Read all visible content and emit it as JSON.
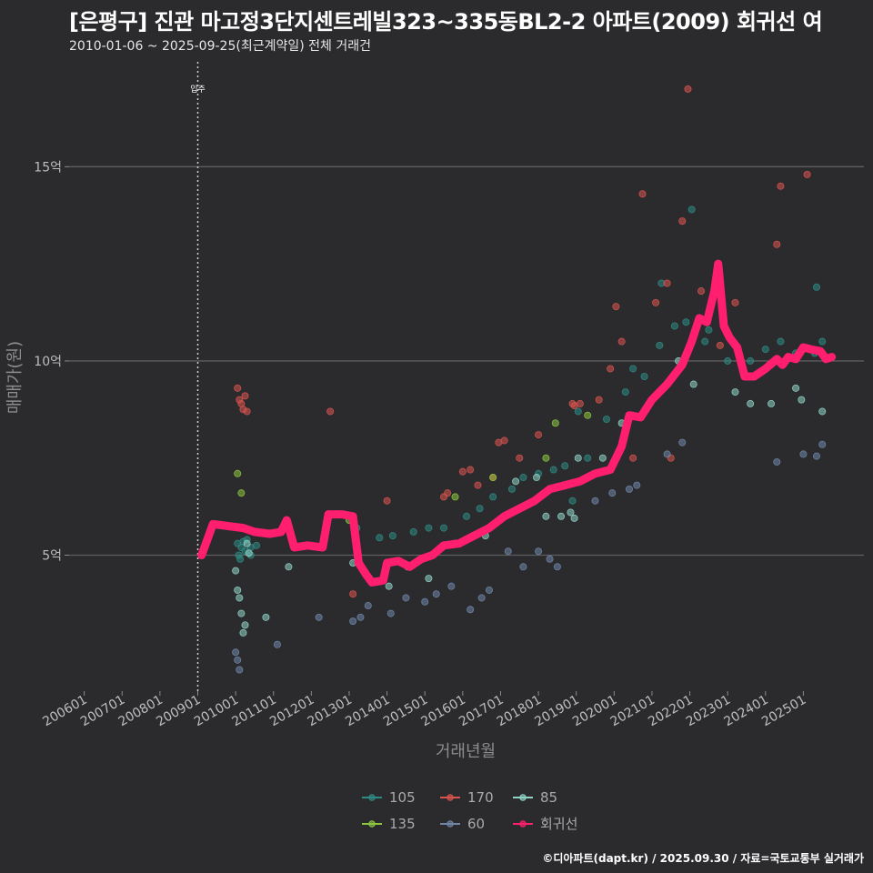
{
  "title": "[은평구] 진관 마고정3단지센트레빌323~335동BL2-2 아파트(2009) 회귀선 여",
  "subtitle": "2010-01-06 ~ 2025-09-25(최근계약일) 전체 거래건",
  "footer": "©디아파트(dapt.kr) / 2025.09.30 / 자료=국토교통부 실거래가",
  "chart_data": {
    "type": "scatter",
    "xlabel": "거래년월",
    "ylabel": "매매가(원)",
    "x_ticks": [
      "200601",
      "200701",
      "200801",
      "200901",
      "201001",
      "201101",
      "201201",
      "201301",
      "201401",
      "201501",
      "201601",
      "201701",
      "201801",
      "201901",
      "202001",
      "202101",
      "202201",
      "202301",
      "202401",
      "202501"
    ],
    "y_ticks": [
      {
        "value": 5,
        "label": "5억"
      },
      {
        "value": 10,
        "label": "10억"
      },
      {
        "value": 15,
        "label": "15억"
      }
    ],
    "xlim": [
      2005.6,
      2026.6
    ],
    "ylim": [
      1.5,
      17.7
    ],
    "grid": true,
    "annotation": {
      "label": "입주",
      "x": 2009.0
    },
    "legend": [
      {
        "name": "105",
        "color": "#2e8b84"
      },
      {
        "name": "170",
        "color": "#d9534f"
      },
      {
        "name": "85",
        "color": "#8fd3c7"
      },
      {
        "name": "135",
        "color": "#8cc63f"
      },
      {
        "name": "60",
        "color": "#6f86a8"
      },
      {
        "name": "회귀선",
        "color": "#ff1f6e"
      }
    ],
    "series": [
      {
        "name": "105",
        "color": "#2e8b84",
        "points": [
          [
            2010.05,
            5.3
          ],
          [
            2010.08,
            5.0
          ],
          [
            2010.12,
            4.9
          ],
          [
            2010.15,
            5.2
          ],
          [
            2010.2,
            5.35
          ],
          [
            2010.25,
            5.1
          ],
          [
            2010.3,
            5.4
          ],
          [
            2010.4,
            5.2
          ],
          [
            2010.55,
            5.25
          ],
          [
            2013.2,
            5.7
          ],
          [
            2013.8,
            5.45
          ],
          [
            2014.15,
            5.5
          ],
          [
            2014.7,
            5.6
          ],
          [
            2015.1,
            5.7
          ],
          [
            2015.5,
            5.7
          ],
          [
            2016.1,
            6.0
          ],
          [
            2016.45,
            6.2
          ],
          [
            2016.8,
            6.5
          ],
          [
            2017.3,
            6.7
          ],
          [
            2017.6,
            7.0
          ],
          [
            2018.0,
            7.1
          ],
          [
            2018.4,
            7.2
          ],
          [
            2018.7,
            7.3
          ],
          [
            2019.3,
            7.5
          ],
          [
            2019.8,
            8.5
          ],
          [
            2020.3,
            9.2
          ],
          [
            2020.5,
            9.8
          ],
          [
            2021.2,
            10.4
          ],
          [
            2021.9,
            11.0
          ],
          [
            2022.4,
            10.5
          ],
          [
            2022.5,
            10.8
          ],
          [
            2023.0,
            10.0
          ],
          [
            2023.6,
            10.0
          ],
          [
            2024.0,
            10.3
          ],
          [
            2024.4,
            10.5
          ],
          [
            2024.8,
            10.2
          ],
          [
            2025.3,
            10.2
          ],
          [
            2025.5,
            10.5
          ],
          [
            2021.6,
            10.9
          ],
          [
            2020.8,
            9.6
          ],
          [
            2019.05,
            8.7
          ],
          [
            2022.05,
            13.9
          ],
          [
            2025.35,
            11.9
          ],
          [
            2021.25,
            12.0
          ],
          [
            2010.4,
            5.0
          ],
          [
            2018.9,
            6.4
          ]
        ]
      },
      {
        "name": "170",
        "color": "#d9534f",
        "points": [
          [
            2010.05,
            9.3
          ],
          [
            2010.1,
            9.0
          ],
          [
            2010.15,
            8.9
          ],
          [
            2010.2,
            8.75
          ],
          [
            2010.25,
            9.1
          ],
          [
            2010.3,
            8.7
          ],
          [
            2012.5,
            8.7
          ],
          [
            2014.0,
            6.4
          ],
          [
            2015.5,
            6.5
          ],
          [
            2015.6,
            6.6
          ],
          [
            2016.0,
            7.15
          ],
          [
            2016.2,
            7.2
          ],
          [
            2016.4,
            6.8
          ],
          [
            2016.8,
            7.0
          ],
          [
            2016.95,
            7.9
          ],
          [
            2017.1,
            7.95
          ],
          [
            2017.5,
            7.5
          ],
          [
            2018.0,
            8.1
          ],
          [
            2018.9,
            8.9
          ],
          [
            2018.95,
            8.85
          ],
          [
            2019.1,
            8.9
          ],
          [
            2019.6,
            9.0
          ],
          [
            2019.9,
            9.8
          ],
          [
            2020.05,
            11.4
          ],
          [
            2020.2,
            10.5
          ],
          [
            2020.5,
            7.5
          ],
          [
            2020.75,
            14.3
          ],
          [
            2021.1,
            11.5
          ],
          [
            2021.4,
            12.0
          ],
          [
            2021.8,
            13.6
          ],
          [
            2021.95,
            17.0
          ],
          [
            2022.3,
            11.8
          ],
          [
            2022.5,
            11.2
          ],
          [
            2022.8,
            10.4
          ],
          [
            2023.2,
            11.5
          ],
          [
            2024.3,
            13.0
          ],
          [
            2024.4,
            14.5
          ],
          [
            2025.1,
            14.8
          ],
          [
            2021.5,
            7.5
          ],
          [
            2013.1,
            4.0
          ]
        ]
      },
      {
        "name": "85",
        "color": "#8fd3c7",
        "points": [
          [
            2010.0,
            4.6
          ],
          [
            2010.05,
            4.1
          ],
          [
            2010.1,
            3.9
          ],
          [
            2010.15,
            3.5
          ],
          [
            2010.2,
            3.0
          ],
          [
            2010.25,
            3.2
          ],
          [
            2010.3,
            5.3
          ],
          [
            2010.35,
            5.05
          ],
          [
            2010.8,
            3.4
          ],
          [
            2011.4,
            4.7
          ],
          [
            2013.1,
            4.8
          ],
          [
            2013.6,
            4.3
          ],
          [
            2014.05,
            4.2
          ],
          [
            2014.55,
            4.7
          ],
          [
            2015.1,
            4.4
          ],
          [
            2015.8,
            5.3
          ],
          [
            2016.6,
            5.5
          ],
          [
            2017.4,
            6.9
          ],
          [
            2018.2,
            6.0
          ],
          [
            2018.6,
            6.0
          ],
          [
            2018.85,
            6.1
          ],
          [
            2018.95,
            5.95
          ],
          [
            2019.05,
            7.5
          ],
          [
            2019.7,
            7.5
          ],
          [
            2021.7,
            10.0
          ],
          [
            2022.1,
            9.4
          ],
          [
            2023.2,
            9.2
          ],
          [
            2023.6,
            8.9
          ],
          [
            2024.15,
            8.9
          ],
          [
            2024.8,
            9.3
          ],
          [
            2024.95,
            9.0
          ],
          [
            2025.5,
            8.7
          ],
          [
            2020.2,
            8.4
          ],
          [
            2017.95,
            7.0
          ]
        ]
      },
      {
        "name": "135",
        "color": "#8cc63f",
        "points": [
          [
            2010.05,
            7.1
          ],
          [
            2010.15,
            6.6
          ],
          [
            2013.0,
            5.9
          ],
          [
            2015.8,
            6.5
          ],
          [
            2016.8,
            7.0
          ],
          [
            2018.2,
            7.5
          ],
          [
            2018.45,
            8.4
          ],
          [
            2019.3,
            8.6
          ],
          [
            2020.25,
            8.0
          ]
        ]
      },
      {
        "name": "60",
        "color": "#6f86a8",
        "points": [
          [
            2010.0,
            2.5
          ],
          [
            2010.05,
            2.3
          ],
          [
            2010.1,
            2.05
          ],
          [
            2011.1,
            2.7
          ],
          [
            2012.2,
            3.4
          ],
          [
            2013.1,
            3.3
          ],
          [
            2013.3,
            3.4
          ],
          [
            2013.5,
            3.7
          ],
          [
            2014.1,
            3.5
          ],
          [
            2014.5,
            3.9
          ],
          [
            2015.0,
            3.8
          ],
          [
            2015.3,
            4.0
          ],
          [
            2015.7,
            4.2
          ],
          [
            2016.2,
            3.6
          ],
          [
            2016.5,
            3.9
          ],
          [
            2016.7,
            4.1
          ],
          [
            2017.2,
            5.1
          ],
          [
            2017.6,
            4.7
          ],
          [
            2018.0,
            5.1
          ],
          [
            2018.3,
            4.9
          ],
          [
            2018.5,
            4.7
          ],
          [
            2019.5,
            6.4
          ],
          [
            2019.95,
            6.6
          ],
          [
            2020.4,
            6.7
          ],
          [
            2020.6,
            6.8
          ],
          [
            2021.4,
            7.6
          ],
          [
            2021.8,
            7.9
          ],
          [
            2024.3,
            7.4
          ],
          [
            2025.0,
            7.6
          ],
          [
            2025.35,
            7.55
          ],
          [
            2025.5,
            7.85
          ]
        ]
      }
    ],
    "regression": {
      "name": "회귀선",
      "color": "#ff1f6e",
      "points": [
        [
          2009.1,
          5.0
        ],
        [
          2009.4,
          5.8
        ],
        [
          2009.8,
          5.75
        ],
        [
          2010.2,
          5.7
        ],
        [
          2010.5,
          5.6
        ],
        [
          2010.9,
          5.55
        ],
        [
          2011.2,
          5.6
        ],
        [
          2011.35,
          5.9
        ],
        [
          2011.55,
          5.2
        ],
        [
          2011.9,
          5.25
        ],
        [
          2012.3,
          5.2
        ],
        [
          2012.45,
          6.05
        ],
        [
          2012.8,
          6.05
        ],
        [
          2013.1,
          6.0
        ],
        [
          2013.25,
          4.8
        ],
        [
          2013.45,
          4.5
        ],
        [
          2013.6,
          4.3
        ],
        [
          2013.9,
          4.35
        ],
        [
          2014.0,
          4.8
        ],
        [
          2014.3,
          4.85
        ],
        [
          2014.6,
          4.7
        ],
        [
          2014.9,
          4.9
        ],
        [
          2015.2,
          5.0
        ],
        [
          2015.5,
          5.25
        ],
        [
          2015.9,
          5.3
        ],
        [
          2016.3,
          5.5
        ],
        [
          2016.7,
          5.7
        ],
        [
          2017.1,
          6.0
        ],
        [
          2017.5,
          6.2
        ],
        [
          2017.9,
          6.4
        ],
        [
          2018.3,
          6.7
        ],
        [
          2018.7,
          6.8
        ],
        [
          2019.1,
          6.9
        ],
        [
          2019.5,
          7.1
        ],
        [
          2019.9,
          7.2
        ],
        [
          2020.2,
          7.8
        ],
        [
          2020.4,
          8.6
        ],
        [
          2020.7,
          8.55
        ],
        [
          2021.0,
          9.0
        ],
        [
          2021.4,
          9.4
        ],
        [
          2021.8,
          9.9
        ],
        [
          2022.05,
          10.5
        ],
        [
          2022.25,
          11.1
        ],
        [
          2022.45,
          11.0
        ],
        [
          2022.65,
          11.8
        ],
        [
          2022.75,
          12.5
        ],
        [
          2022.9,
          10.9
        ],
        [
          2023.05,
          10.6
        ],
        [
          2023.25,
          10.35
        ],
        [
          2023.45,
          9.6
        ],
        [
          2023.7,
          9.6
        ],
        [
          2024.0,
          9.8
        ],
        [
          2024.3,
          10.05
        ],
        [
          2024.45,
          9.9
        ],
        [
          2024.6,
          10.1
        ],
        [
          2024.8,
          10.05
        ],
        [
          2025.0,
          10.35
        ],
        [
          2025.2,
          10.3
        ],
        [
          2025.45,
          10.25
        ],
        [
          2025.6,
          10.05
        ],
        [
          2025.75,
          10.1
        ]
      ]
    }
  }
}
